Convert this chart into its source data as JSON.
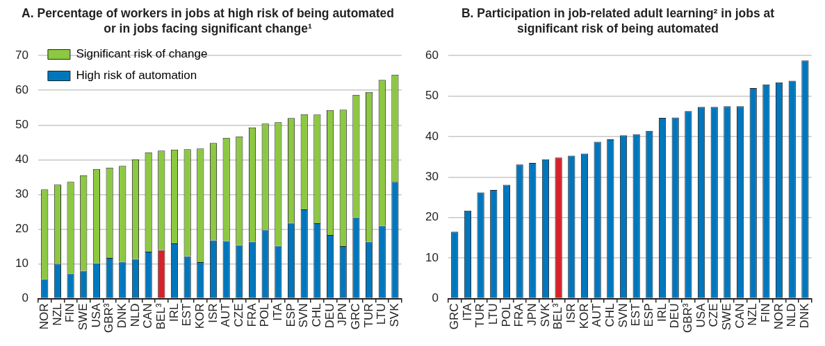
{
  "chart_data": [
    {
      "type": "bar",
      "title": "A. Percentage of workers in jobs at high risk of being automated or in jobs facing significant change¹",
      "stacked": true,
      "legend": "top left",
      "grid": "y",
      "ylim": [
        0,
        70
      ],
      "yticks": [
        0,
        10,
        20,
        30,
        40,
        50,
        60,
        70
      ],
      "categories": [
        "NOR",
        "NZL",
        "FIN",
        "SWE",
        "USA",
        "GBR³",
        "DNK",
        "NLD",
        "CAN",
        "BEL³",
        "IRL",
        "EST",
        "KOR",
        "ISR",
        "AUT",
        "CZE",
        "FRA",
        "POL",
        "ITA",
        "ESP",
        "SVN",
        "CHL",
        "DEU",
        "JPN",
        "GRC",
        "TUR",
        "LTU",
        "SVK"
      ],
      "series": [
        {
          "name": "High risk of automation",
          "color": "#0077bd",
          "colors": [
            "#0077bd",
            "#0077bd",
            "#0077bd",
            "#0077bd",
            "#0077bd",
            "#0077bd",
            "#0077bd",
            "#0077bd",
            "#0077bd",
            "#d62228",
            "#0077bd",
            "#0077bd",
            "#0077bd",
            "#0077bd",
            "#0077bd",
            "#0077bd",
            "#0077bd",
            "#0077bd",
            "#0077bd",
            "#0077bd",
            "#0077bd",
            "#0077bd",
            "#0077bd",
            "#0077bd",
            "#0077bd",
            "#0077bd",
            "#0077bd",
            "#0077bd"
          ],
          "values": [
            5.6,
            10.0,
            7.2,
            8.0,
            10.2,
            11.7,
            10.6,
            11.4,
            13.5,
            14.0,
            15.9,
            12.2,
            10.5,
            16.8,
            16.6,
            15.4,
            16.4,
            19.8,
            15.2,
            21.8,
            25.7,
            21.7,
            18.3,
            15.1,
            23.4,
            16.4,
            21.0,
            33.6
          ]
        },
        {
          "name": "Significant risk of change",
          "color": "#8cc841",
          "values": [
            25.8,
            22.8,
            26.4,
            27.5,
            27.1,
            26.0,
            27.6,
            28.7,
            28.6,
            28.6,
            27.0,
            30.8,
            32.7,
            28.0,
            29.7,
            31.3,
            32.9,
            30.6,
            35.6,
            30.2,
            27.4,
            31.3,
            36.0,
            39.3,
            35.3,
            43.1,
            42.0,
            30.9
          ]
        }
      ]
    },
    {
      "type": "bar",
      "title": "B. Participation in job-related adult learning² in jobs at significant risk of being automated",
      "legend": false,
      "grid": "y",
      "ylim": [
        0,
        60
      ],
      "yticks": [
        0,
        10,
        20,
        30,
        40,
        50,
        60
      ],
      "categories": [
        "GRC",
        "ITA",
        "TUR",
        "LTU",
        "POL",
        "FRA",
        "JPN",
        "SVK",
        "BEL³",
        "ISR",
        "KOR",
        "AUT",
        "CHL",
        "SVN",
        "EST",
        "ESP",
        "IRL",
        "DEU",
        "GBR³",
        "USA",
        "CZE",
        "SWE",
        "CAN",
        "NZL",
        "FIN",
        "NOR",
        "NLD",
        "DNK"
      ],
      "colors": [
        "#0077bd",
        "#0077bd",
        "#0077bd",
        "#0077bd",
        "#0077bd",
        "#0077bd",
        "#0077bd",
        "#0077bd",
        "#d62228",
        "#0077bd",
        "#0077bd",
        "#0077bd",
        "#0077bd",
        "#0077bd",
        "#0077bd",
        "#0077bd",
        "#0077bd",
        "#0077bd",
        "#0077bd",
        "#0077bd",
        "#0077bd",
        "#0077bd",
        "#0077bd",
        "#0077bd",
        "#0077bd",
        "#0077bd",
        "#0077bd",
        "#0077bd"
      ],
      "values": [
        16.5,
        21.7,
        26.2,
        26.8,
        28.1,
        33.1,
        33.5,
        34.4,
        34.8,
        35.3,
        35.8,
        38.7,
        39.3,
        40.3,
        40.6,
        41.4,
        44.6,
        44.7,
        46.3,
        47.3,
        47.3,
        47.5,
        47.5,
        52.0,
        52.9,
        53.4,
        53.8,
        58.8
      ]
    }
  ]
}
